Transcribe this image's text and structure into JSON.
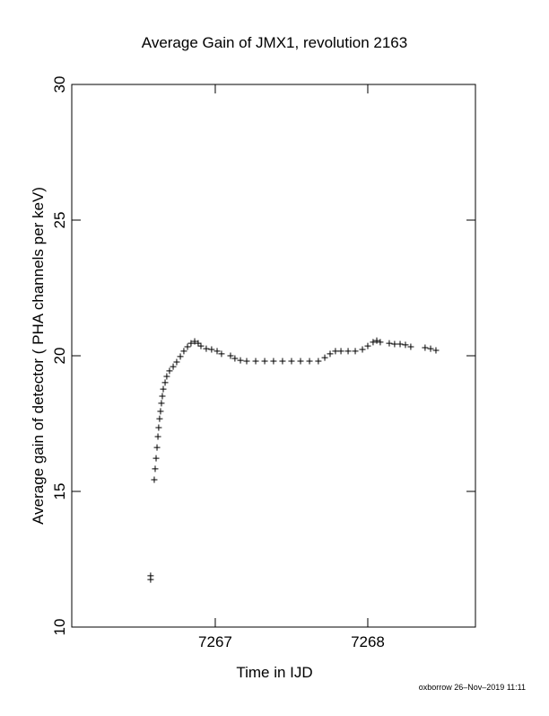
{
  "chart_data": {
    "type": "scatter",
    "title": "Average Gain of JMX1, revolution 2163",
    "x_label": "Time in IJD",
    "y_label": "Average gain of detector ( PHA channels per keV)",
    "footer": "oxborrow 26–Nov–2019 11:11",
    "color": "#000000",
    "xlim": [
      7266.059,
      7268.706
    ],
    "ylim": [
      10,
      30
    ],
    "xticks": [
      7267,
      7268
    ],
    "yticks": [
      10,
      15,
      20,
      25,
      30
    ],
    "x": [
      7266.576,
      7266.576,
      7266.6,
      7266.606,
      7266.612,
      7266.618,
      7266.624,
      7266.629,
      7266.635,
      7266.641,
      7266.647,
      7266.653,
      7266.659,
      7266.671,
      7266.682,
      7266.7,
      7266.724,
      7266.747,
      7266.771,
      7266.794,
      7266.818,
      7266.841,
      7266.865,
      7266.888,
      7266.906,
      7266.941,
      7266.976,
      7267.012,
      7267.041,
      7267.1,
      7267.129,
      7267.165,
      7267.206,
      7267.265,
      7267.324,
      7267.382,
      7267.441,
      7267.5,
      7267.559,
      7267.618,
      7267.676,
      7267.718,
      7267.753,
      7267.788,
      7267.824,
      7267.871,
      7267.918,
      7267.965,
      7268.0,
      7268.035,
      7268.059,
      7268.082,
      7268.141,
      7268.176,
      7268.212,
      7268.247,
      7268.282,
      7268.376,
      7268.412,
      7268.447
    ],
    "values": [
      11.89,
      11.75,
      15.43,
      15.83,
      16.22,
      16.62,
      17.02,
      17.35,
      17.68,
      17.95,
      18.25,
      18.51,
      18.77,
      19.01,
      19.24,
      19.44,
      19.6,
      19.77,
      19.97,
      20.17,
      20.33,
      20.46,
      20.53,
      20.46,
      20.36,
      20.26,
      20.23,
      20.17,
      20.07,
      20.0,
      19.9,
      19.83,
      19.8,
      19.8,
      19.8,
      19.8,
      19.8,
      19.8,
      19.8,
      19.8,
      19.8,
      19.93,
      20.07,
      20.17,
      20.17,
      20.17,
      20.17,
      20.23,
      20.36,
      20.5,
      20.56,
      20.5,
      20.46,
      20.43,
      20.43,
      20.4,
      20.33,
      20.3,
      20.26,
      20.2
    ]
  }
}
